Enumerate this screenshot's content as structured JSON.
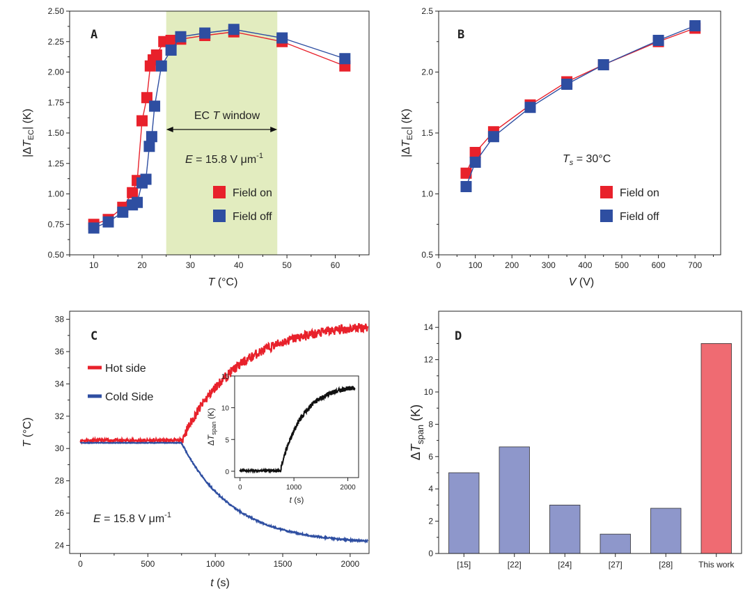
{
  "figure": {
    "colors": {
      "red": "#e8212b",
      "blue": "#2e4ea1",
      "window": "#e2ecbf",
      "barBlue": "#8e97cb",
      "barRed": "#ef6b72",
      "black": "#111111",
      "axis": "#222222"
    }
  },
  "chart_data": [
    {
      "id": "A",
      "type": "line",
      "panel_letter": "A",
      "xlabel": "T (°C)",
      "xlabel_italic": "T",
      "xlabel_unit": " (°C)",
      "ylabel": "|ΔTEC| (K)",
      "xlim": [
        5,
        67
      ],
      "ylim": [
        0.5,
        2.5
      ],
      "xticks": [
        10,
        20,
        30,
        40,
        50,
        60
      ],
      "yticks": [
        "0.50",
        "0.75",
        "1.00",
        "1.25",
        "1.50",
        "1.75",
        "2.00",
        "2.25",
        "2.50"
      ],
      "shaded_window": {
        "from": 25,
        "to": 48
      },
      "annotations": {
        "window_label": "EC T window",
        "window_label_pre": "EC ",
        "window_label_italic": "T",
        "window_label_post": " window",
        "field_label": "E = 15.8 V μm",
        "field_italic": "E",
        "field_value": " = 15.8 V μm",
        "field_sup": "-1"
      },
      "legend": [
        "Field on",
        "Field off"
      ],
      "series": [
        {
          "name": "Field on",
          "color": "red",
          "x": [
            10,
            13,
            16,
            18,
            19,
            20,
            21,
            21.7,
            22.3,
            23,
            24.5,
            26,
            28,
            33,
            39,
            49,
            62
          ],
          "y": [
            0.75,
            0.79,
            0.89,
            1.01,
            1.11,
            1.6,
            1.79,
            2.05,
            2.1,
            2.14,
            2.25,
            2.26,
            2.27,
            2.3,
            2.33,
            2.25,
            2.05
          ]
        },
        {
          "name": "Field off",
          "color": "blue",
          "x": [
            10,
            13,
            16,
            18,
            19,
            20,
            20.8,
            21.5,
            22,
            22.6,
            24,
            26,
            28,
            33,
            39,
            49,
            62
          ],
          "y": [
            0.72,
            0.77,
            0.85,
            0.91,
            0.93,
            1.09,
            1.12,
            1.39,
            1.47,
            1.72,
            2.05,
            2.18,
            2.29,
            2.32,
            2.35,
            2.28,
            2.11
          ]
        }
      ]
    },
    {
      "id": "B",
      "type": "line",
      "panel_letter": "B",
      "xlabel": "V (V)",
      "xlabel_italic": "V",
      "xlabel_unit": " (V)",
      "ylabel": "|ΔTEC| (K)",
      "xlim": [
        0,
        770
      ],
      "ylim": [
        0.5,
        2.5
      ],
      "xticks": [
        0,
        100,
        200,
        300,
        400,
        500,
        600,
        700
      ],
      "yticks": [
        "0.5",
        "1.0",
        "1.5",
        "2.0",
        "2.5"
      ],
      "annotations": {
        "ts_label": "Ts = 30°C",
        "ts_T": "T",
        "ts_s": "s",
        "ts_value": " = 30°C"
      },
      "legend": [
        "Field on",
        "Field off"
      ],
      "series": [
        {
          "name": "Field on",
          "color": "red",
          "x": [
            75,
            100,
            150,
            250,
            350,
            450,
            600,
            700
          ],
          "y": [
            1.17,
            1.34,
            1.51,
            1.73,
            1.92,
            2.06,
            2.25,
            2.36
          ]
        },
        {
          "name": "Field off",
          "color": "blue",
          "x": [
            75,
            100,
            150,
            250,
            350,
            450,
            600,
            700
          ],
          "y": [
            1.06,
            1.26,
            1.47,
            1.71,
            1.9,
            2.06,
            2.26,
            2.38
          ]
        }
      ]
    },
    {
      "id": "C",
      "type": "line",
      "panel_letter": "C",
      "xlabel": "t (s)",
      "xlabel_italic": "t",
      "xlabel_unit": " (s)",
      "ylabel": "T (°C)",
      "ylabel_italic": "T",
      "ylabel_unit": " (°C)",
      "xlim": [
        -80,
        2140
      ],
      "ylim": [
        23.5,
        38.5
      ],
      "xticks": [
        0,
        500,
        1000,
        1500,
        2000
      ],
      "yticks": [
        24,
        26,
        28,
        30,
        32,
        34,
        36,
        38
      ],
      "annotations": {
        "field_label": "E = 15.8 V μm-1",
        "field_italic": "E",
        "field_value": " = 15.8 V μm",
        "field_sup": "-1"
      },
      "legend": [
        "Hot side",
        "Cold Side"
      ],
      "series": [
        {
          "name": "Hot side",
          "color": "red",
          "baseline": 30.5,
          "t_on": 750,
          "final": 37.8,
          "tau": 420,
          "noise": 0.3
        },
        {
          "name": "Cold Side",
          "color": "blue",
          "baseline": 30.35,
          "t_on": 750,
          "final": 24.1,
          "tau": 380,
          "noise": 0.05
        }
      ],
      "inset": {
        "xlabel": "t (s)",
        "ylabel": "ΔTspan (K)",
        "xlim": [
          -100,
          2200
        ],
        "ylim": [
          -1,
          15
        ],
        "xticks": [
          0,
          1000,
          2000
        ],
        "yticks": [
          0,
          5,
          10,
          15
        ],
        "series": {
          "color": "black",
          "baseline": 0.1,
          "t_on": 750,
          "final": 13.6,
          "tau": 400,
          "noise": 0.35
        }
      }
    },
    {
      "id": "D",
      "type": "bar",
      "panel_letter": "D",
      "ylabel": "ΔTspan (K)",
      "categories": [
        "[15]",
        "[22]",
        "[24]",
        "[27]",
        "[28]",
        "This work"
      ],
      "values": [
        5.0,
        6.6,
        3.0,
        1.2,
        2.8,
        13.0
      ],
      "bar_colors": [
        "barBlue",
        "barBlue",
        "barBlue",
        "barBlue",
        "barBlue",
        "barRed"
      ],
      "ylim": [
        0,
        15
      ],
      "yticks": [
        0,
        2,
        4,
        6,
        8,
        10,
        12,
        14
      ]
    }
  ]
}
